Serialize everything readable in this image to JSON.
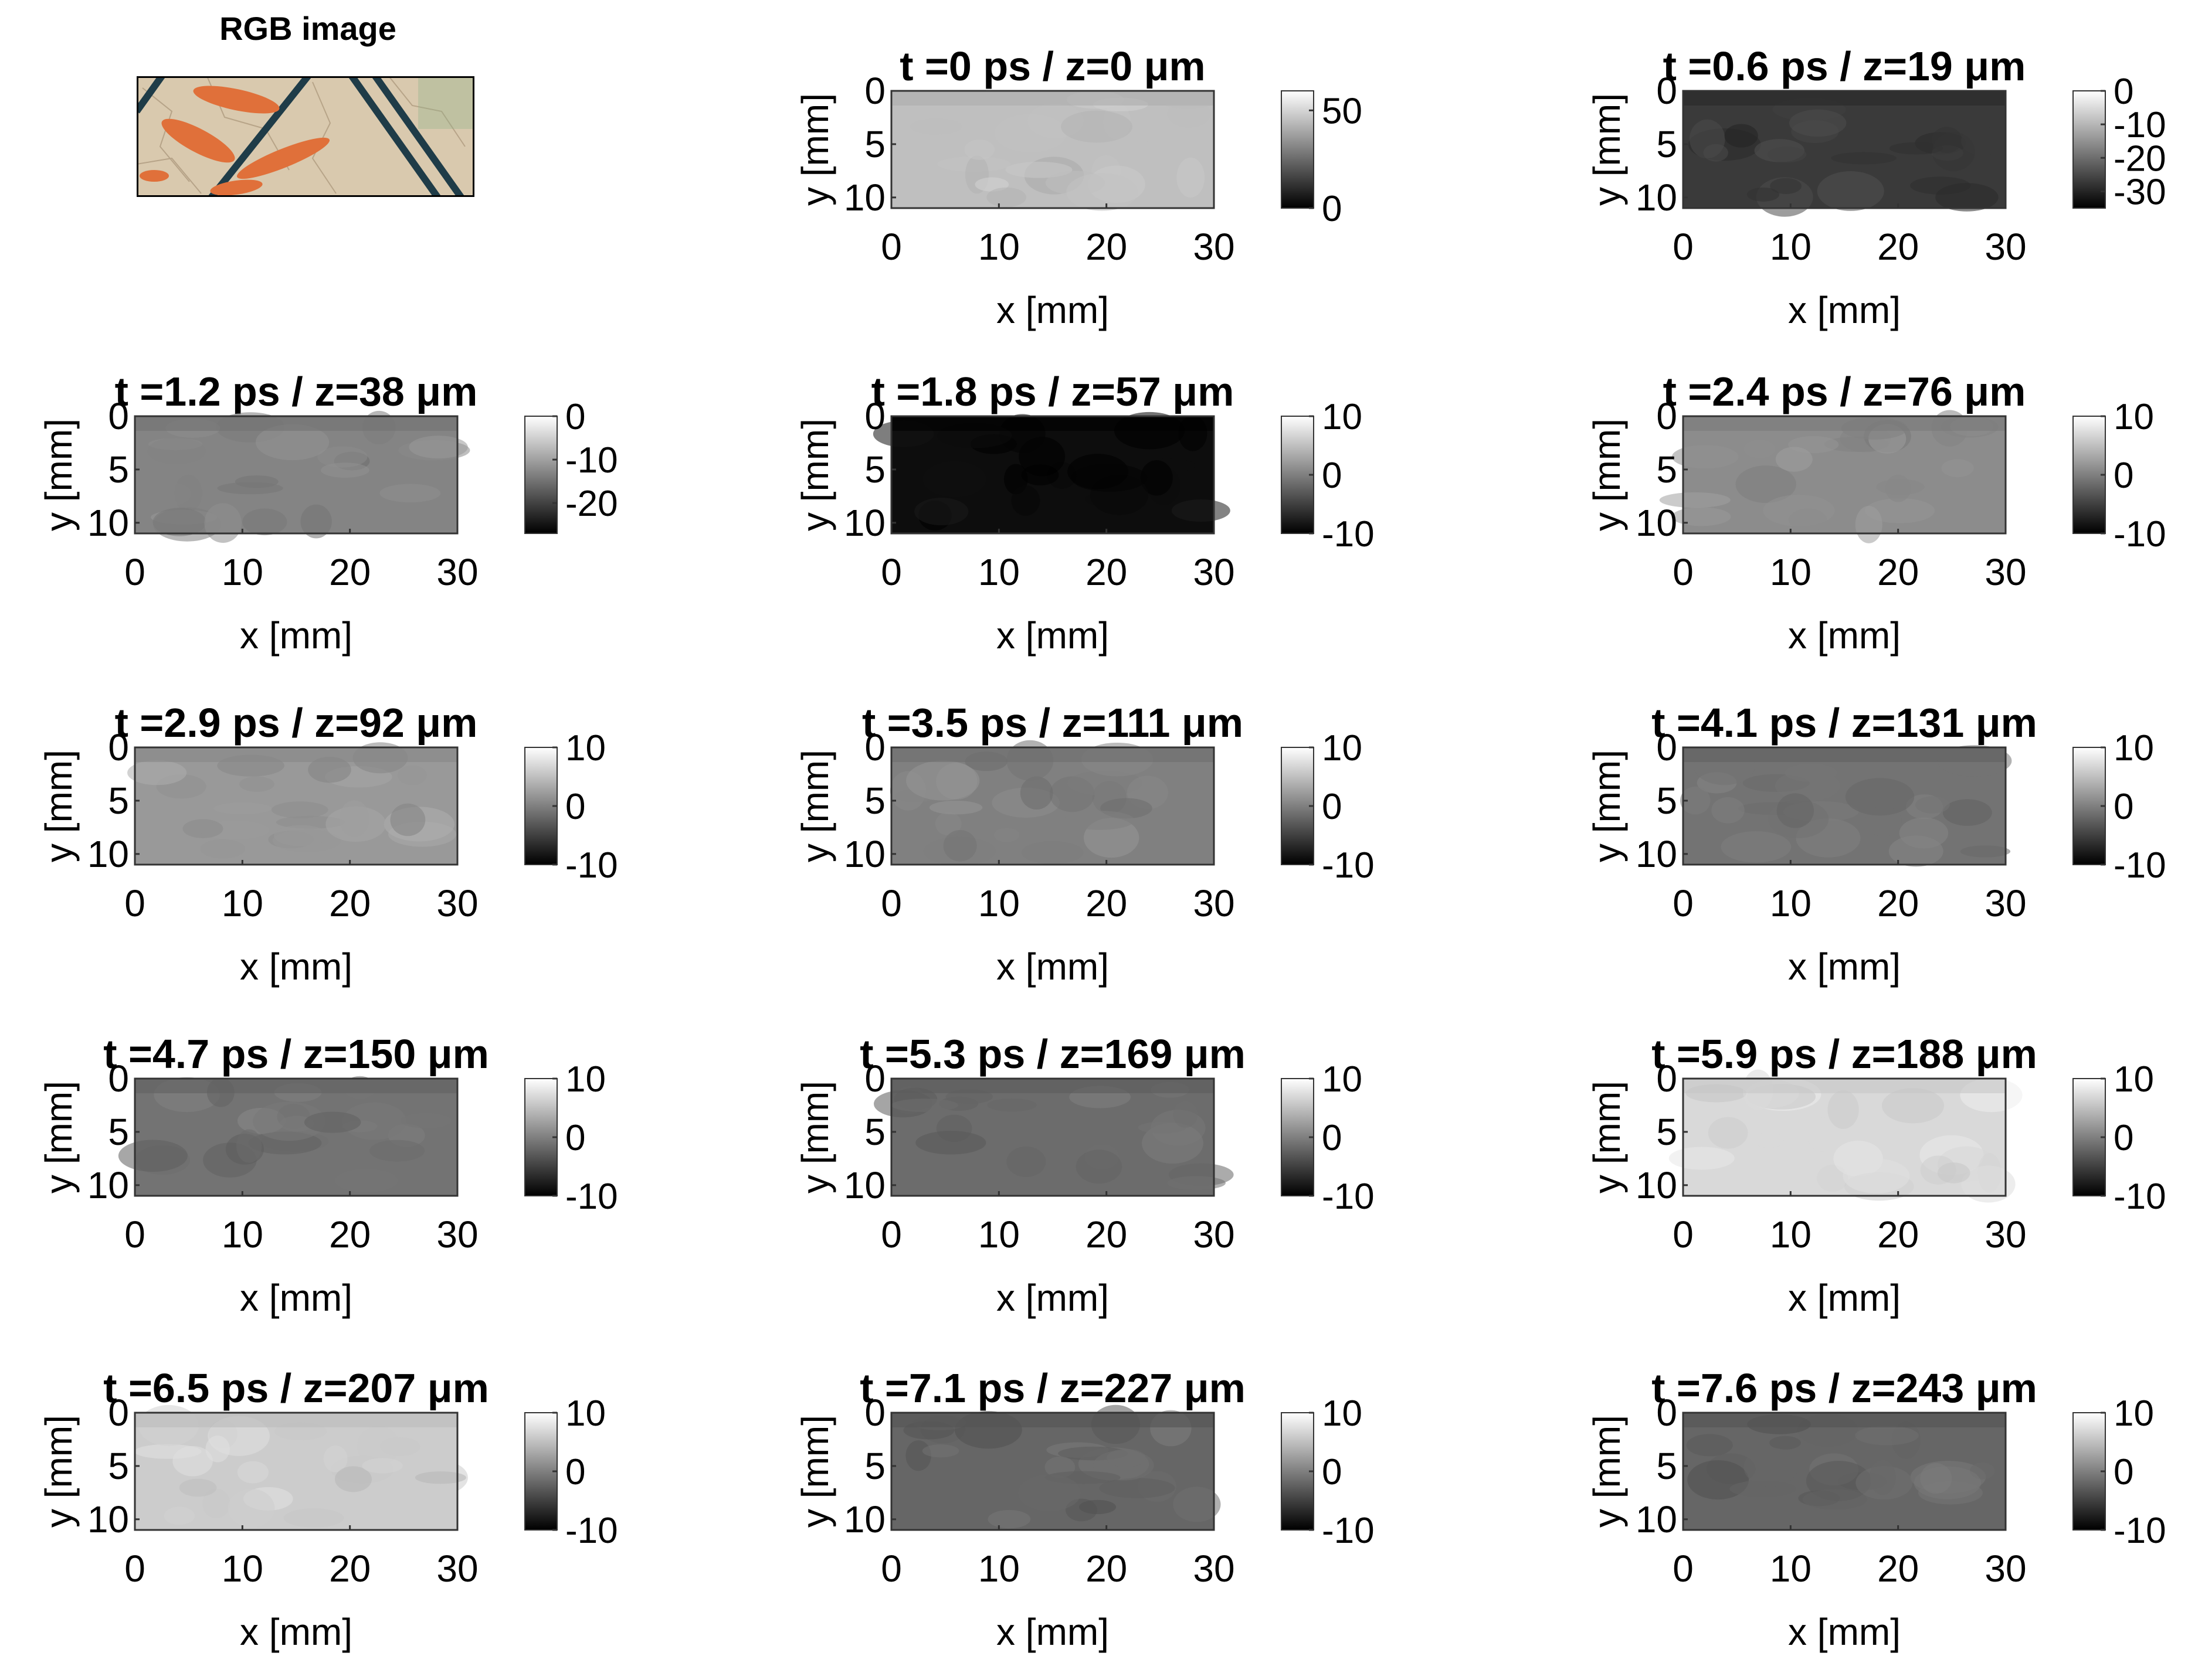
{
  "figure": {
    "rgb_title": "RGB image",
    "rgb_palette": {
      "background": "#d9c9ae",
      "orange": "#e0703a",
      "dark_line": "#1f3c48",
      "green_tint": "#8fb38a"
    },
    "colormap": "gray",
    "panels": [
      {
        "title": "t =0 ps / z=0  μm",
        "t_ps": 0,
        "z_um": 0,
        "clim": [
          0,
          60
        ],
        "cbar_ticks": [
          "50",
          "0"
        ],
        "mean_value": 45
      },
      {
        "title": "t =0.6 ps / z=19  μm",
        "t_ps": 0.6,
        "z_um": 19,
        "clim": [
          -35,
          0
        ],
        "cbar_ticks": [
          "0",
          "-10",
          "-20",
          "-30"
        ],
        "mean_value": -27
      },
      {
        "title": "t =1.2 ps / z=38  μm",
        "t_ps": 1.2,
        "z_um": 38,
        "clim": [
          -27,
          0
        ],
        "cbar_ticks": [
          "0",
          "-10",
          "-20"
        ],
        "mean_value": -13
      },
      {
        "title": "t =1.8 ps / z=57  μm",
        "t_ps": 1.8,
        "z_um": 57,
        "clim": [
          -10,
          10
        ],
        "cbar_ticks": [
          "10",
          "0",
          "-10"
        ],
        "mean_value": -9
      },
      {
        "title": "t =2.4 ps / z=76  μm",
        "t_ps": 2.4,
        "z_um": 76,
        "clim": [
          -10,
          10
        ],
        "cbar_ticks": [
          "10",
          "0",
          "-10"
        ],
        "mean_value": 1
      },
      {
        "title": "t =2.9 ps / z=92  μm",
        "t_ps": 2.9,
        "z_um": 92,
        "clim": [
          -10,
          10
        ],
        "cbar_ticks": [
          "10",
          "0",
          "-10"
        ],
        "mean_value": 2
      },
      {
        "title": "t =3.5 ps / z=111  μm",
        "t_ps": 3.5,
        "z_um": 111,
        "clim": [
          -10,
          10
        ],
        "cbar_ticks": [
          "10",
          "0",
          "-10"
        ],
        "mean_value": 0
      },
      {
        "title": "t =4.1 ps / z=131  μm",
        "t_ps": 4.1,
        "z_um": 131,
        "clim": [
          -10,
          10
        ],
        "cbar_ticks": [
          "10",
          "0",
          "-10"
        ],
        "mean_value": -1
      },
      {
        "title": "t =4.7 ps / z=150  μm",
        "t_ps": 4.7,
        "z_um": 150,
        "clim": [
          -10,
          10
        ],
        "cbar_ticks": [
          "10",
          "0",
          "-10"
        ],
        "mean_value": -1
      },
      {
        "title": "t =5.3 ps / z=169  μm",
        "t_ps": 5.3,
        "z_um": 169,
        "clim": [
          -10,
          10
        ],
        "cbar_ticks": [
          "10",
          "0",
          "-10"
        ],
        "mean_value": -1.5
      },
      {
        "title": "t =5.9 ps / z=188  μm",
        "t_ps": 5.9,
        "z_um": 188,
        "clim": [
          -10,
          10
        ],
        "cbar_ticks": [
          "10",
          "0",
          "-10"
        ],
        "mean_value": 7
      },
      {
        "title": "t =6.5 ps / z=207  μm",
        "t_ps": 6.5,
        "z_um": 207,
        "clim": [
          -10,
          10
        ],
        "cbar_ticks": [
          "10",
          "0",
          "-10"
        ],
        "mean_value": 6
      },
      {
        "title": "t =7.1 ps / z=227  μm",
        "t_ps": 7.1,
        "z_um": 227,
        "clim": [
          -10,
          10
        ],
        "cbar_ticks": [
          "10",
          "0",
          "-10"
        ],
        "mean_value": -2
      },
      {
        "title": "t =7.6 ps / z=243  μm",
        "t_ps": 7.6,
        "z_um": 243,
        "clim": [
          -10,
          10
        ],
        "cbar_ticks": [
          "10",
          "0",
          "-10"
        ],
        "mean_value": -2
      }
    ]
  },
  "chart_data": {
    "type": "heatmap",
    "xlabel": "x [mm]",
    "ylabel": "y [mm]",
    "xlim": [
      0,
      30
    ],
    "ylim": [
      0,
      11
    ],
    "xticks": [
      "0",
      "10",
      "20",
      "30"
    ],
    "yticks": [
      "0",
      "5",
      "10"
    ],
    "y_direction": "reversed"
  }
}
